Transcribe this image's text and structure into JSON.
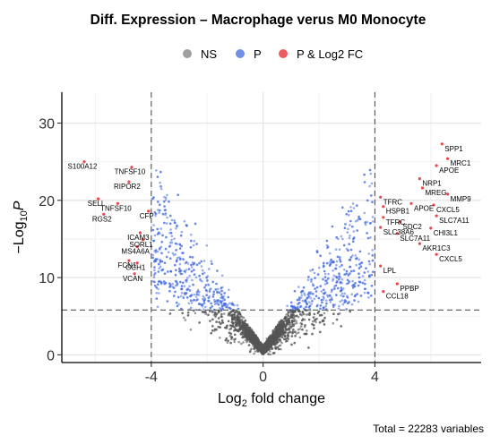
{
  "chart_data": {
    "type": "scatter",
    "title": "Diff. Expression – Macrophage verus M0 Monocyte",
    "xlabel": "Log2 fold change",
    "xlabel_base": "Log",
    "xlabel_sub": "2",
    "xlabel_rest": " fold change",
    "ylabel": "-Log10 P",
    "ylabel_prefix": "−Log",
    "ylabel_sub": "10",
    "ylabel_italic": "P",
    "xlim": [
      -7.2,
      7.8
    ],
    "ylim": [
      -1,
      34
    ],
    "x_ticks": [
      -4,
      0,
      4
    ],
    "x_tick_labels": [
      "-4",
      "0",
      "4"
    ],
    "y_ticks": [
      0,
      10,
      20,
      30
    ],
    "y_tick_labels": [
      "0",
      "10",
      "20",
      "30"
    ],
    "fc_cutoff": 4,
    "p_cutoff": 5.8,
    "grid": true,
    "legend_position": "top",
    "legend": [
      {
        "name": "NS",
        "color": "#7f7f7f"
      },
      {
        "name": "P",
        "color": "#4169e1"
      },
      {
        "name": "P & Log2 FC",
        "color": "#e8262a"
      }
    ],
    "caption": "Total = 22283 variables",
    "labeled_points": [
      {
        "gene": "S100A12",
        "x": -6.4,
        "y": 25.0
      },
      {
        "gene": "TNFSF10",
        "x": -4.7,
        "y": 24.3
      },
      {
        "gene": "RIPOR2",
        "x": -4.8,
        "y": 22.4
      },
      {
        "gene": "SELL",
        "x": -5.9,
        "y": 20.2
      },
      {
        "gene": "TNFSF10",
        "x": -5.2,
        "y": 19.6
      },
      {
        "gene": "RGS2",
        "x": -5.7,
        "y": 18.2
      },
      {
        "gene": "CFP",
        "x": -4.1,
        "y": 18.6
      },
      {
        "gene": "ICAM3",
        "x": -4.4,
        "y": 15.8
      },
      {
        "gene": "SORL1",
        "x": -4.3,
        "y": 14.9
      },
      {
        "gene": "MS4A6A",
        "x": -4.5,
        "y": 14.0
      },
      {
        "gene": "FCN1",
        "x": -4.8,
        "y": 12.2
      },
      {
        "gene": "GCH1",
        "x": -4.5,
        "y": 11.9
      },
      {
        "gene": "VCAN",
        "x": -4.6,
        "y": 10.5
      },
      {
        "gene": "SPP1",
        "x": 6.4,
        "y": 27.3
      },
      {
        "gene": "MRC1",
        "x": 6.6,
        "y": 25.4
      },
      {
        "gene": "APOE",
        "x": 6.2,
        "y": 24.5
      },
      {
        "gene": "NRP1",
        "x": 5.6,
        "y": 22.8
      },
      {
        "gene": "MREG",
        "x": 5.7,
        "y": 21.6
      },
      {
        "gene": "TFRC",
        "x": 4.2,
        "y": 20.4
      },
      {
        "gene": "MMP9",
        "x": 6.6,
        "y": 20.8
      },
      {
        "gene": "HSPB1",
        "x": 4.3,
        "y": 19.2
      },
      {
        "gene": "APOE",
        "x": 5.3,
        "y": 19.6
      },
      {
        "gene": "CXCL5",
        "x": 6.1,
        "y": 19.4
      },
      {
        "gene": "TFRC",
        "x": 4.3,
        "y": 17.8
      },
      {
        "gene": "SDC2",
        "x": 4.9,
        "y": 17.2
      },
      {
        "gene": "SLC7A11",
        "x": 6.2,
        "y": 18.0
      },
      {
        "gene": "SLC38A6",
        "x": 4.2,
        "y": 16.5
      },
      {
        "gene": "CHI3L1",
        "x": 6.0,
        "y": 16.4
      },
      {
        "gene": "SLC7A11",
        "x": 4.8,
        "y": 15.7
      },
      {
        "gene": "AKR1C3",
        "x": 5.6,
        "y": 14.4
      },
      {
        "gene": "CXCL5",
        "x": 6.2,
        "y": 13.0
      },
      {
        "gene": "LPL",
        "x": 4.2,
        "y": 11.5
      },
      {
        "gene": "PPBP",
        "x": 4.8,
        "y": 9.2
      },
      {
        "gene": "CCL18",
        "x": 4.3,
        "y": 8.2
      }
    ]
  }
}
